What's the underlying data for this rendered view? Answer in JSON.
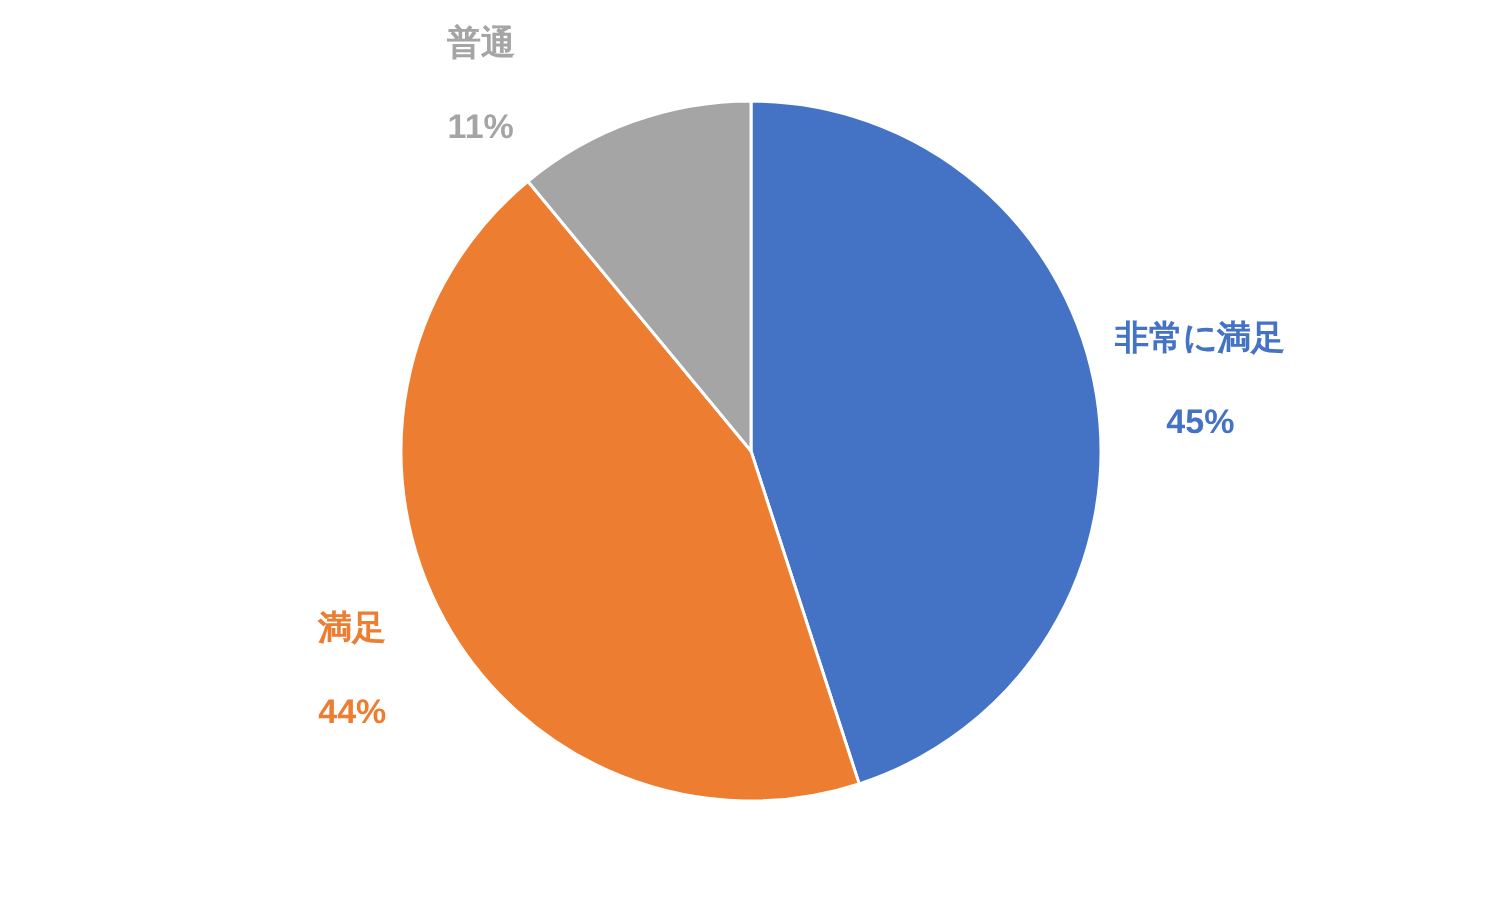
{
  "chart_data": {
    "type": "pie",
    "categories": [
      "非常に満足",
      "満足",
      "普通"
    ],
    "values": [
      45,
      44,
      11
    ],
    "colors": [
      "#4472c4",
      "#ed7d31",
      "#a5a5a5"
    ],
    "value_labels": [
      "45%",
      "44%",
      "11%"
    ]
  }
}
